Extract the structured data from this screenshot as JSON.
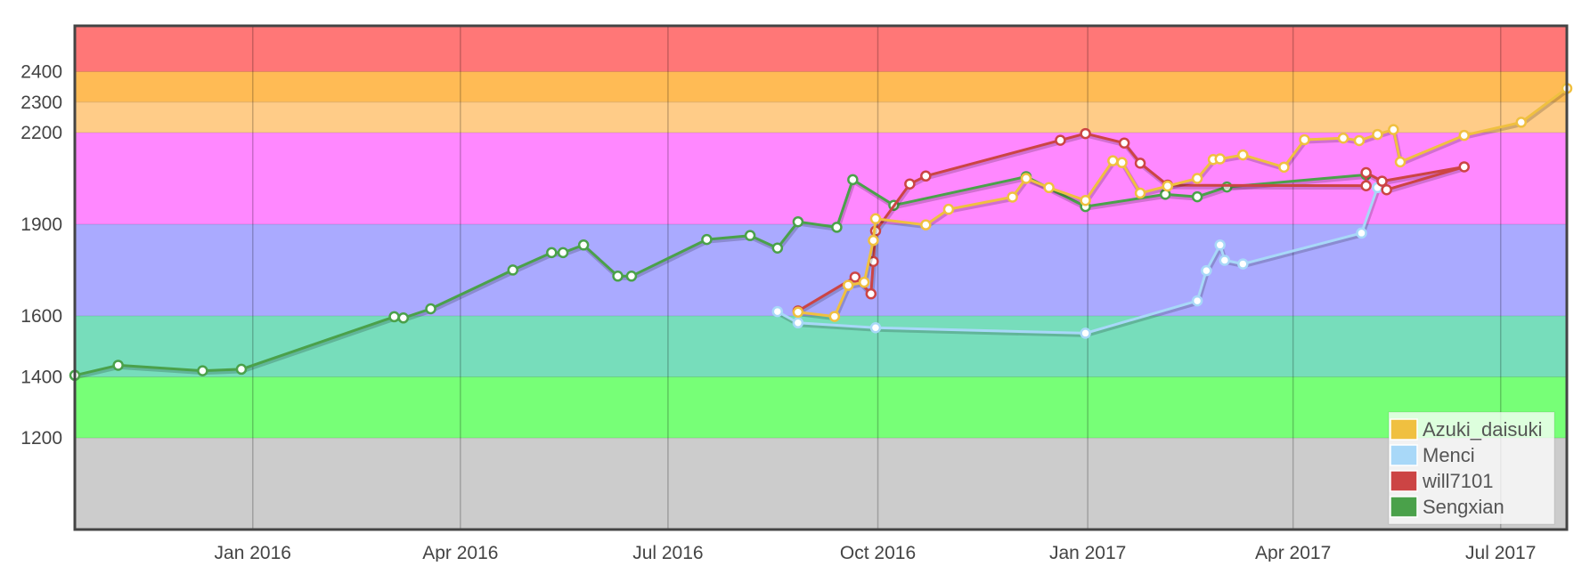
{
  "chart_data": {
    "type": "line",
    "title": "",
    "xlabel": "",
    "ylabel": "",
    "x_tick_labels": [
      "Jan 2016",
      "Apr 2016",
      "Jul 2016",
      "Oct 2016",
      "Jan 2017",
      "Apr 2017",
      "Jul 2017"
    ],
    "x_tick_dates": [
      "2016-01-01",
      "2016-04-01",
      "2016-07-01",
      "2016-10-01",
      "2017-01-01",
      "2017-04-01",
      "2017-07-01"
    ],
    "xlim": [
      "2015-10-15",
      "2017-07-30"
    ],
    "y_ticks": [
      1200,
      1400,
      1600,
      1900,
      2200,
      2300,
      2400
    ],
    "ylim": [
      900,
      2550
    ],
    "grid": "vertical",
    "legend_position": "bottom-right",
    "bands": [
      {
        "from": 900,
        "to": 1200,
        "color": "#cccccc"
      },
      {
        "from": 1200,
        "to": 1400,
        "color": "#77ff77"
      },
      {
        "from": 1400,
        "to": 1600,
        "color": "#77ddbb"
      },
      {
        "from": 1600,
        "to": 1900,
        "color": "#aaaaff"
      },
      {
        "from": 1900,
        "to": 2200,
        "color": "#ff88ff"
      },
      {
        "from": 2200,
        "to": 2300,
        "color": "#ffcc88"
      },
      {
        "from": 2300,
        "to": 2400,
        "color": "#ffbb55"
      },
      {
        "from": 2400,
        "to": 2550,
        "color": "#ff7777"
      }
    ],
    "series": [
      {
        "name": "Sengxian",
        "color": "#4aa14a",
        "points": [
          [
            "2015-10-15",
            1405
          ],
          [
            "2015-11-03",
            1438
          ],
          [
            "2015-12-10",
            1420
          ],
          [
            "2015-12-27",
            1425
          ],
          [
            "2016-03-03",
            1597
          ],
          [
            "2016-03-07",
            1593
          ],
          [
            "2016-03-19",
            1623
          ],
          [
            "2016-04-24",
            1750
          ],
          [
            "2016-05-11",
            1807
          ],
          [
            "2016-05-16",
            1807
          ],
          [
            "2016-05-25",
            1832
          ],
          [
            "2016-06-09",
            1730
          ],
          [
            "2016-06-15",
            1730
          ],
          [
            "2016-07-18",
            1850
          ],
          [
            "2016-08-06",
            1863
          ],
          [
            "2016-08-18",
            1822
          ],
          [
            "2016-08-27",
            1908
          ],
          [
            "2016-09-13",
            1890
          ],
          [
            "2016-09-20",
            2046
          ],
          [
            "2016-10-08",
            1962
          ],
          [
            "2016-12-05",
            2056
          ],
          [
            "2016-12-31",
            1958
          ],
          [
            "2017-02-04",
            1998
          ],
          [
            "2017-02-18",
            1990
          ],
          [
            "2017-03-03",
            2022
          ],
          [
            "2017-05-03",
            2062
          ]
        ]
      },
      {
        "name": "Menci",
        "color": "#a8d8f8",
        "points": [
          [
            "2016-08-18",
            1614
          ],
          [
            "2016-08-27",
            1577
          ],
          [
            "2016-09-30",
            1561
          ],
          [
            "2016-12-31",
            1543
          ],
          [
            "2017-02-18",
            1649
          ],
          [
            "2017-02-22",
            1748
          ],
          [
            "2017-02-28",
            1832
          ],
          [
            "2017-03-02",
            1782
          ],
          [
            "2017-03-10",
            1770
          ],
          [
            "2017-05-01",
            1871
          ],
          [
            "2017-05-08",
            2020
          ]
        ]
      },
      {
        "name": "will7101",
        "color": "#cc4444",
        "points": [
          [
            "2016-08-27",
            1616
          ],
          [
            "2016-09-21",
            1727
          ],
          [
            "2016-09-28",
            1672
          ],
          [
            "2016-09-29",
            1778
          ],
          [
            "2016-09-30",
            1878
          ],
          [
            "2016-10-15",
            2032
          ],
          [
            "2016-10-22",
            2058
          ],
          [
            "2016-12-20",
            2175
          ],
          [
            "2016-12-31",
            2197
          ],
          [
            "2017-01-17",
            2166
          ],
          [
            "2017-01-24",
            2100
          ],
          [
            "2017-02-05",
            2028
          ],
          [
            "2017-05-03",
            2026
          ],
          [
            "2017-05-03",
            2069
          ],
          [
            "2017-05-10",
            2041
          ],
          [
            "2017-06-15",
            2088
          ],
          [
            "2017-05-12",
            2013
          ]
        ]
      },
      {
        "name": "Azuki_daisuki",
        "color": "#f0c040",
        "points": [
          [
            "2016-08-27",
            1612
          ],
          [
            "2016-09-12",
            1598
          ],
          [
            "2016-09-18",
            1700
          ],
          [
            "2016-09-25",
            1710
          ],
          [
            "2016-09-29",
            1847
          ],
          [
            "2016-09-30",
            1918
          ],
          [
            "2016-10-22",
            1898
          ],
          [
            "2016-11-01",
            1949
          ],
          [
            "2016-11-29",
            1989
          ],
          [
            "2016-12-05",
            2050
          ],
          [
            "2016-12-15",
            2020
          ],
          [
            "2016-12-31",
            1978
          ],
          [
            "2017-01-12",
            2108
          ],
          [
            "2017-01-16",
            2102
          ],
          [
            "2017-01-24",
            2002
          ],
          [
            "2017-02-05",
            2025
          ],
          [
            "2017-02-18",
            2050
          ],
          [
            "2017-02-25",
            2112
          ],
          [
            "2017-02-28",
            2114
          ],
          [
            "2017-03-10",
            2127
          ],
          [
            "2017-03-28",
            2087
          ],
          [
            "2017-04-06",
            2177
          ],
          [
            "2017-04-23",
            2182
          ],
          [
            "2017-04-30",
            2174
          ],
          [
            "2017-05-08",
            2194
          ],
          [
            "2017-05-15",
            2210
          ],
          [
            "2017-05-18",
            2104
          ],
          [
            "2017-06-15",
            2191
          ],
          [
            "2017-07-10",
            2234
          ],
          [
            "2017-07-30",
            2345
          ]
        ]
      }
    ],
    "legend": [
      {
        "name": "Azuki_daisuki",
        "color": "#f0c040"
      },
      {
        "name": "Menci",
        "color": "#a8d8f8"
      },
      {
        "name": "will7101",
        "color": "#cc4444"
      },
      {
        "name": "Sengxian",
        "color": "#4aa14a"
      }
    ]
  }
}
